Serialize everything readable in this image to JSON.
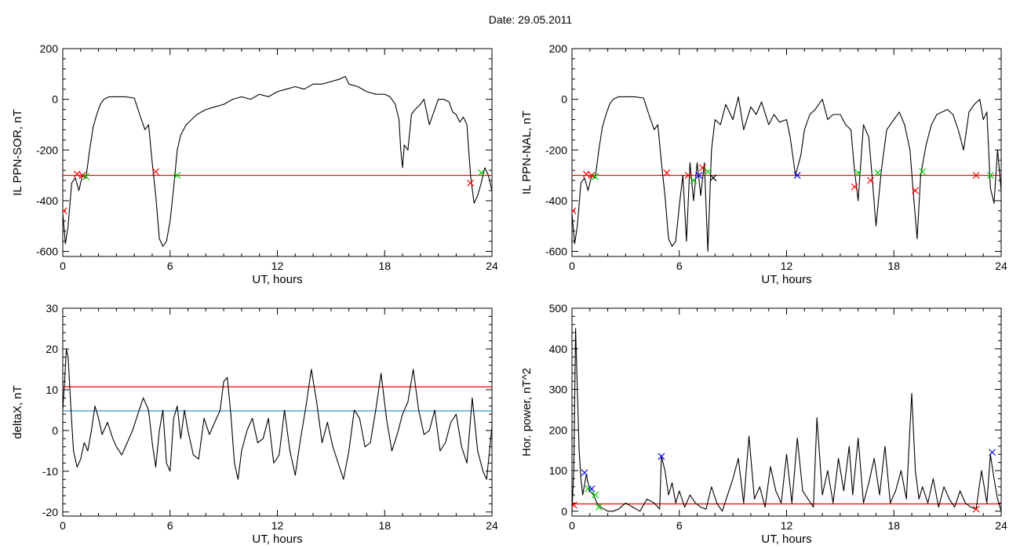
{
  "figure": {
    "title": "Date:  29.05.2011"
  },
  "chart_data": [
    {
      "id": "sor",
      "type": "line",
      "xlabel": "UT, hours",
      "ylabel": "IL PPN-SOR, nT",
      "xlim": [
        0,
        24
      ],
      "ylim": [
        -620,
        200
      ],
      "xticks": [
        0,
        6,
        12,
        18,
        24
      ],
      "yticks": [
        -600,
        -400,
        -200,
        0,
        200
      ],
      "series": [
        {
          "color": "#000000",
          "x": [
            0,
            0.15,
            0.3,
            0.5,
            0.7,
            0.9,
            1.1,
            1.3,
            1.5,
            1.7,
            1.9,
            2.1,
            2.3,
            2.6,
            3.0,
            3.5,
            4.0,
            4.3,
            4.6,
            4.8,
            5.0,
            5.2,
            5.4,
            5.6,
            5.8,
            6.0,
            6.2,
            6.4,
            6.6,
            6.9,
            7.2,
            7.5,
            8.0,
            8.5,
            9.0,
            9.5,
            10.0,
            10.5,
            11.0,
            11.5,
            12.0,
            12.5,
            13.0,
            13.5,
            14.0,
            14.5,
            15.0,
            15.5,
            15.8,
            16.0,
            16.5,
            17.0,
            17.5,
            18.0,
            18.3,
            18.6,
            18.8,
            18.9,
            19.0,
            19.1,
            19.3,
            19.5,
            19.7,
            20.0,
            20.2,
            20.5,
            20.8,
            21.0,
            21.3,
            21.6,
            21.8,
            22.0,
            22.2,
            22.4,
            22.6,
            22.8,
            23.0,
            23.2,
            23.4,
            23.6,
            23.8,
            24.0
          ],
          "values": [
            -450,
            -570,
            -500,
            -330,
            -310,
            -360,
            -300,
            -310,
            -200,
            -110,
            -60,
            -20,
            0,
            10,
            10,
            10,
            5,
            -60,
            -120,
            -100,
            -250,
            -380,
            -550,
            -580,
            -560,
            -480,
            -350,
            -200,
            -140,
            -100,
            -80,
            -60,
            -40,
            -30,
            -20,
            0,
            10,
            0,
            20,
            10,
            30,
            40,
            50,
            40,
            60,
            60,
            70,
            80,
            90,
            60,
            50,
            30,
            20,
            20,
            10,
            -20,
            -80,
            -200,
            -270,
            -180,
            -200,
            -60,
            -40,
            -20,
            0,
            -100,
            -40,
            0,
            0,
            -10,
            -50,
            -60,
            -90,
            -70,
            -100,
            -300,
            -410,
            -380,
            -330,
            -270,
            -300,
            -360
          ]
        }
      ],
      "markers": [
        {
          "x": 0.05,
          "y": -440,
          "color": "#ff0000",
          "symbol": "x"
        },
        {
          "x": 0.8,
          "y": -295,
          "color": "#ff0000",
          "symbol": "x"
        },
        {
          "x": 1.1,
          "y": -300,
          "color": "#ff0000",
          "symbol": "x"
        },
        {
          "x": 1.3,
          "y": -305,
          "color": "#00cc00",
          "symbol": "x"
        },
        {
          "x": 5.2,
          "y": -285,
          "color": "#ff0000",
          "symbol": "x"
        },
        {
          "x": 6.4,
          "y": -300,
          "color": "#00cc00",
          "symbol": "x"
        },
        {
          "x": 22.8,
          "y": -330,
          "color": "#ff0000",
          "symbol": "x"
        },
        {
          "x": 23.4,
          "y": -290,
          "color": "#00cc00",
          "symbol": "x"
        }
      ],
      "hlines": [
        {
          "y": -300,
          "color": "#ff0000"
        }
      ]
    },
    {
      "id": "nal",
      "type": "line",
      "xlabel": "UT, hours",
      "ylabel": "IL PPN-NAL, nT",
      "xlim": [
        0,
        24
      ],
      "ylim": [
        -620,
        200
      ],
      "xticks": [
        0,
        6,
        12,
        18,
        24
      ],
      "yticks": [
        -600,
        -400,
        -200,
        0,
        200
      ],
      "series": [
        {
          "color": "#000000",
          "x": [
            0,
            0.15,
            0.3,
            0.5,
            0.7,
            0.9,
            1.1,
            1.3,
            1.5,
            1.7,
            1.9,
            2.1,
            2.3,
            2.6,
            3.0,
            3.5,
            4.0,
            4.3,
            4.6,
            4.8,
            5.0,
            5.2,
            5.4,
            5.6,
            5.8,
            6.0,
            6.2,
            6.4,
            6.6,
            6.8,
            7.0,
            7.2,
            7.4,
            7.6,
            7.8,
            8.0,
            8.3,
            8.6,
            9.0,
            9.3,
            9.6,
            10.0,
            10.3,
            10.6,
            11.0,
            11.3,
            11.6,
            12.0,
            12.2,
            12.5,
            12.8,
            13.0,
            13.3,
            13.6,
            14.0,
            14.3,
            14.6,
            15.0,
            15.3,
            15.6,
            15.8,
            16.0,
            16.3,
            16.6,
            16.8,
            17.0,
            17.3,
            17.6,
            18.0,
            18.3,
            18.6,
            18.9,
            19.1,
            19.3,
            19.5,
            19.8,
            20.1,
            20.4,
            20.7,
            21.0,
            21.3,
            21.6,
            21.9,
            22.2,
            22.5,
            22.8,
            23.0,
            23.2,
            23.4,
            23.6,
            23.8,
            24.0
          ],
          "values": [
            -450,
            -570,
            -500,
            -330,
            -310,
            -360,
            -300,
            -310,
            -200,
            -110,
            -60,
            -20,
            0,
            10,
            10,
            10,
            5,
            -60,
            -120,
            -100,
            -250,
            -380,
            -550,
            -580,
            -560,
            -420,
            -300,
            -560,
            -250,
            -400,
            -250,
            -380,
            -250,
            -600,
            -200,
            -80,
            -100,
            -20,
            -80,
            10,
            -120,
            -30,
            -60,
            -10,
            -100,
            -60,
            -90,
            -80,
            -150,
            -300,
            -220,
            -120,
            -60,
            -40,
            0,
            -80,
            -60,
            -60,
            -100,
            -120,
            -280,
            -400,
            -100,
            -150,
            -320,
            -500,
            -280,
            -120,
            -80,
            -50,
            -100,
            -200,
            -380,
            -550,
            -300,
            -180,
            -100,
            -60,
            -50,
            -40,
            -60,
            -120,
            -200,
            -50,
            -20,
            0,
            -80,
            -50,
            -350,
            -410,
            -200,
            -360
          ]
        }
      ],
      "markers": [
        {
          "x": 0.05,
          "y": -440,
          "color": "#ff0000",
          "symbol": "x"
        },
        {
          "x": 0.8,
          "y": -295,
          "color": "#ff0000",
          "symbol": "x"
        },
        {
          "x": 1.1,
          "y": -300,
          "color": "#ff0000",
          "symbol": "x"
        },
        {
          "x": 1.3,
          "y": -305,
          "color": "#00cc00",
          "symbol": "x"
        },
        {
          "x": 5.3,
          "y": -290,
          "color": "#ff0000",
          "symbol": "x"
        },
        {
          "x": 6.5,
          "y": -300,
          "color": "#ff0000",
          "symbol": "x"
        },
        {
          "x": 6.8,
          "y": -320,
          "color": "#00cc00",
          "symbol": "x"
        },
        {
          "x": 7.1,
          "y": -300,
          "color": "#0000ff",
          "symbol": "x"
        },
        {
          "x": 7.3,
          "y": -270,
          "color": "#ff0000",
          "symbol": "x"
        },
        {
          "x": 7.6,
          "y": -285,
          "color": "#00cc00",
          "symbol": "x"
        },
        {
          "x": 7.9,
          "y": -310,
          "color": "#000000",
          "symbol": "x"
        },
        {
          "x": 12.6,
          "y": -300,
          "color": "#0000ff",
          "symbol": "x"
        },
        {
          "x": 15.8,
          "y": -345,
          "color": "#ff0000",
          "symbol": "x"
        },
        {
          "x": 16.0,
          "y": -290,
          "color": "#00cc00",
          "symbol": "x"
        },
        {
          "x": 16.7,
          "y": -320,
          "color": "#ff0000",
          "symbol": "x"
        },
        {
          "x": 17.1,
          "y": -290,
          "color": "#00cc00",
          "symbol": "x"
        },
        {
          "x": 19.2,
          "y": -360,
          "color": "#ff0000",
          "symbol": "x"
        },
        {
          "x": 19.6,
          "y": -285,
          "color": "#00cc00",
          "symbol": "x"
        },
        {
          "x": 22.6,
          "y": -300,
          "color": "#ff0000",
          "symbol": "x"
        },
        {
          "x": 23.4,
          "y": -300,
          "color": "#00cc00",
          "symbol": "x"
        }
      ],
      "hlines": [
        {
          "y": -300,
          "color": "#ff0000"
        }
      ]
    },
    {
      "id": "deltax",
      "type": "line",
      "xlabel": "UT, hours",
      "ylabel": "deltaX, nT",
      "xlim": [
        0,
        24
      ],
      "ylim": [
        -21,
        30
      ],
      "xticks": [
        0,
        6,
        12,
        18,
        24
      ],
      "yticks": [
        -20,
        -10,
        0,
        10,
        20,
        30
      ],
      "series": [
        {
          "color": "#000000",
          "x": [
            0,
            0.1,
            0.2,
            0.3,
            0.4,
            0.5,
            0.6,
            0.8,
            1.0,
            1.2,
            1.4,
            1.6,
            1.8,
            2.0,
            2.2,
            2.5,
            2.8,
            3.0,
            3.3,
            3.6,
            3.9,
            4.2,
            4.5,
            4.8,
            5.0,
            5.2,
            5.4,
            5.6,
            5.8,
            6.0,
            6.2,
            6.4,
            6.6,
            6.8,
            7.0,
            7.3,
            7.6,
            7.9,
            8.2,
            8.5,
            8.8,
            9.0,
            9.2,
            9.4,
            9.6,
            9.8,
            10.0,
            10.3,
            10.6,
            10.9,
            11.2,
            11.5,
            11.8,
            12.1,
            12.4,
            12.7,
            13.0,
            13.3,
            13.6,
            13.9,
            14.2,
            14.5,
            14.8,
            15.1,
            15.4,
            15.7,
            16.0,
            16.3,
            16.6,
            16.9,
            17.2,
            17.5,
            17.8,
            18.1,
            18.4,
            18.7,
            19.0,
            19.3,
            19.6,
            19.9,
            20.2,
            20.5,
            20.8,
            21.1,
            21.4,
            21.7,
            22.0,
            22.3,
            22.6,
            22.9,
            23.2,
            23.5,
            23.7,
            24.0
          ],
          "values": [
            5,
            12,
            20,
            18,
            10,
            2,
            -5,
            -9,
            -7,
            -3,
            -5,
            0,
            6,
            3,
            -1,
            2,
            -2,
            -4,
            -6,
            -3,
            0,
            4,
            8,
            5,
            -3,
            -9,
            0,
            5,
            -8,
            -10,
            3,
            6,
            -2,
            5,
            0,
            -6,
            -7,
            3,
            -1,
            2,
            5,
            12,
            13,
            4,
            -8,
            -12,
            -5,
            0,
            3,
            -3,
            -2,
            3,
            -8,
            -6,
            5,
            -5,
            -11,
            -2,
            6,
            15,
            7,
            -3,
            2,
            -4,
            -8,
            -12,
            -5,
            5,
            3,
            -4,
            -3,
            5,
            14,
            3,
            -5,
            -1,
            4,
            7,
            15,
            5,
            -1,
            0,
            5,
            -5,
            -3,
            2,
            4,
            -4,
            -8,
            8,
            -5,
            -10,
            -12,
            1
          ]
        }
      ],
      "markers": [],
      "hlines": [
        {
          "y": 10.7,
          "color": "#ff0000"
        },
        {
          "y": 4.8,
          "color": "#1a8ccc"
        }
      ]
    },
    {
      "id": "power",
      "type": "line",
      "xlabel": "UT, hours",
      "ylabel": "Hor. power, nT^2",
      "xlim": [
        0,
        24
      ],
      "ylim": [
        -12,
        500
      ],
      "xticks": [
        0,
        6,
        12,
        18,
        24
      ],
      "yticks": [
        0,
        100,
        200,
        300,
        400,
        500
      ],
      "series": [
        {
          "color": "#000000",
          "x": [
            0,
            0.1,
            0.2,
            0.3,
            0.4,
            0.5,
            0.6,
            0.8,
            1.0,
            1.2,
            1.4,
            1.6,
            1.8,
            2.0,
            2.3,
            2.6,
            3.0,
            3.4,
            3.8,
            4.2,
            4.6,
            4.9,
            5.0,
            5.2,
            5.4,
            5.6,
            5.8,
            6.0,
            6.3,
            6.6,
            6.9,
            7.2,
            7.5,
            7.8,
            8.1,
            8.4,
            8.7,
            9.0,
            9.3,
            9.6,
            9.9,
            10.2,
            10.5,
            10.8,
            11.1,
            11.4,
            11.7,
            12.0,
            12.3,
            12.6,
            12.9,
            13.2,
            13.5,
            13.7,
            14.0,
            14.3,
            14.6,
            14.9,
            15.2,
            15.5,
            15.7,
            16.0,
            16.3,
            16.6,
            16.9,
            17.2,
            17.5,
            17.8,
            18.1,
            18.4,
            18.7,
            19.0,
            19.2,
            19.4,
            19.6,
            19.9,
            20.2,
            20.5,
            20.8,
            21.1,
            21.4,
            21.7,
            22.0,
            22.3,
            22.6,
            22.9,
            23.2,
            23.4,
            23.6,
            23.8,
            24.0
          ],
          "values": [
            0,
            100,
            450,
            300,
            150,
            80,
            40,
            90,
            50,
            40,
            20,
            10,
            5,
            0,
            0,
            5,
            20,
            10,
            0,
            30,
            20,
            5,
            135,
            100,
            40,
            70,
            20,
            50,
            10,
            40,
            20,
            10,
            5,
            60,
            20,
            0,
            40,
            80,
            130,
            20,
            185,
            30,
            60,
            10,
            110,
            50,
            20,
            140,
            20,
            180,
            50,
            30,
            10,
            230,
            40,
            100,
            20,
            130,
            50,
            160,
            40,
            180,
            20,
            70,
            130,
            40,
            160,
            20,
            50,
            100,
            30,
            290,
            100,
            30,
            60,
            20,
            80,
            10,
            60,
            30,
            10,
            50,
            20,
            10,
            5,
            100,
            20,
            140,
            80,
            30,
            0
          ]
        }
      ],
      "markers": [
        {
          "x": 0.1,
          "y": 15,
          "color": "#ff0000",
          "symbol": "x"
        },
        {
          "x": 0.7,
          "y": 95,
          "color": "#0000ff",
          "symbol": "x"
        },
        {
          "x": 0.9,
          "y": 55,
          "color": "#00cc00",
          "symbol": "x"
        },
        {
          "x": 1.1,
          "y": 55,
          "color": "#0000ff",
          "symbol": "x"
        },
        {
          "x": 1.3,
          "y": 40,
          "color": "#00cc00",
          "symbol": "x"
        },
        {
          "x": 1.5,
          "y": 10,
          "color": "#00cc00",
          "symbol": "x"
        },
        {
          "x": 5.0,
          "y": 135,
          "color": "#0000ff",
          "symbol": "x"
        },
        {
          "x": 22.6,
          "y": 5,
          "color": "#ff0000",
          "symbol": "x"
        },
        {
          "x": 23.5,
          "y": 145,
          "color": "#0000ff",
          "symbol": "x"
        }
      ],
      "hlines": [
        {
          "y": 18,
          "color": "#ff0000"
        }
      ]
    }
  ]
}
